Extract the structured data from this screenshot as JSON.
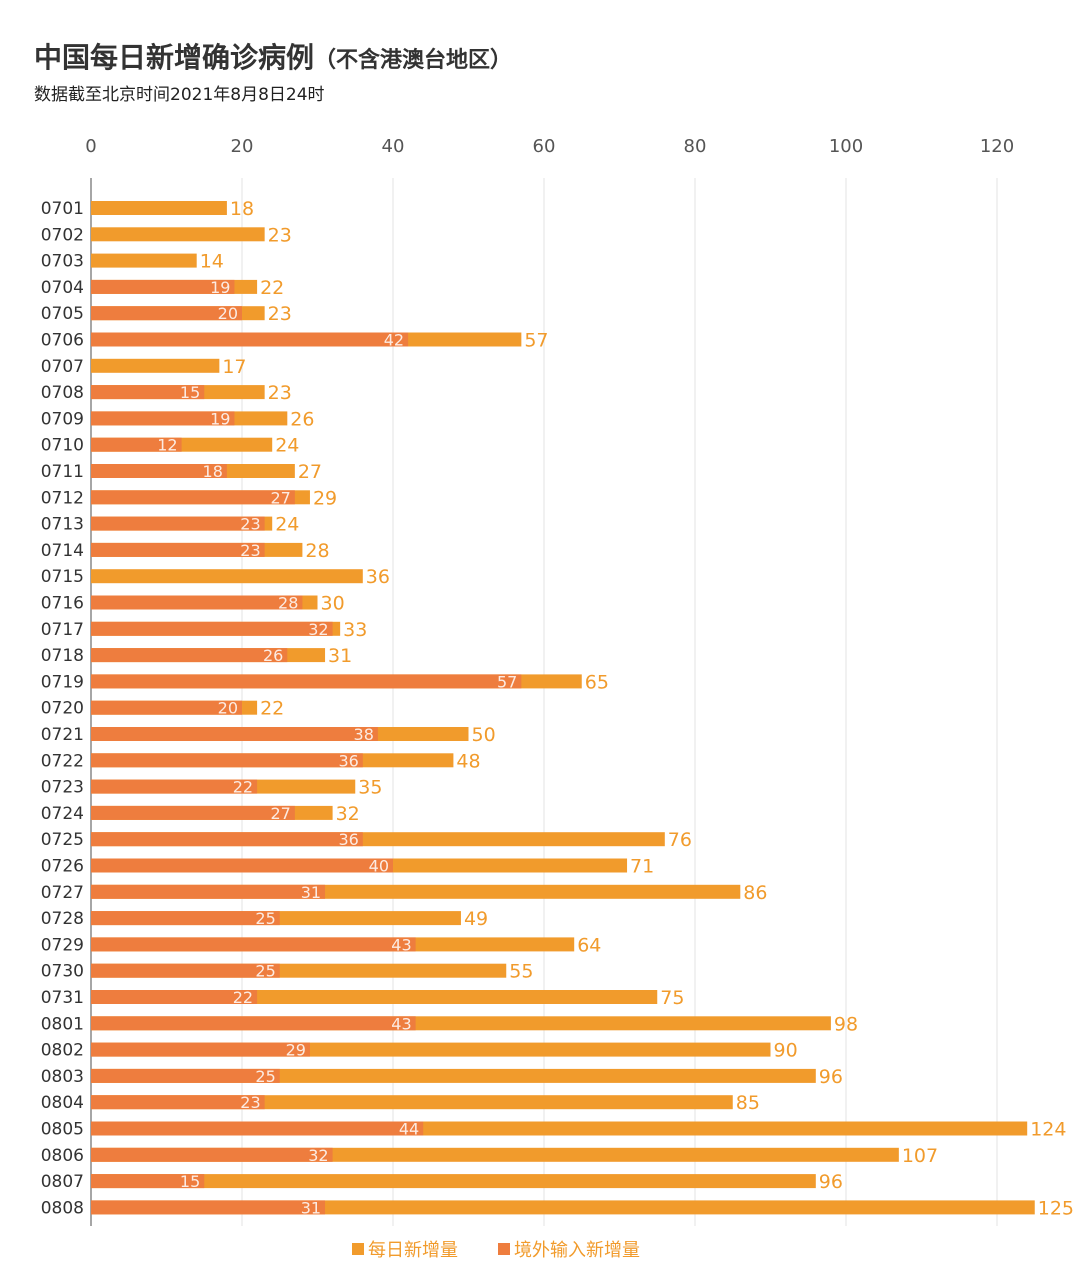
{
  "title": "中国每日新增确诊病例",
  "title_note": "（不含港澳台地区）",
  "subtitle": "数据截至北京时间2021年8月8日24时",
  "colors": {
    "total": "#f19b2c",
    "imported": "#ee7d3e",
    "grid": "#e3e3e3",
    "axis": "#888888"
  },
  "chart_data": {
    "type": "bar",
    "orientation": "horizontal",
    "stacking": "overlay",
    "xlim": [
      0,
      125
    ],
    "xticks": [
      0,
      20,
      40,
      60,
      80,
      100,
      120
    ],
    "grid": true,
    "legend_position": "bottom",
    "categories": [
      "0701",
      "0702",
      "0703",
      "0704",
      "0705",
      "0706",
      "0707",
      "0708",
      "0709",
      "0710",
      "0711",
      "0712",
      "0713",
      "0714",
      "0715",
      "0716",
      "0717",
      "0718",
      "0719",
      "0720",
      "0721",
      "0722",
      "0723",
      "0724",
      "0725",
      "0726",
      "0727",
      "0728",
      "0729",
      "0730",
      "0731",
      "0801",
      "0802",
      "0803",
      "0804",
      "0805",
      "0806",
      "0807",
      "0808"
    ],
    "series": [
      {
        "name": "每日新增量",
        "values": [
          18,
          23,
          14,
          22,
          23,
          57,
          17,
          23,
          26,
          24,
          27,
          29,
          24,
          28,
          36,
          30,
          33,
          31,
          65,
          22,
          50,
          48,
          35,
          32,
          76,
          71,
          86,
          49,
          64,
          55,
          75,
          98,
          90,
          96,
          85,
          124,
          107,
          96,
          125
        ]
      },
      {
        "name": "境外输入新增量",
        "values": [
          null,
          null,
          null,
          19,
          20,
          42,
          null,
          15,
          19,
          12,
          18,
          27,
          23,
          23,
          null,
          28,
          32,
          26,
          57,
          20,
          38,
          36,
          22,
          27,
          36,
          40,
          31,
          25,
          43,
          25,
          22,
          43,
          29,
          25,
          23,
          44,
          32,
          15,
          31
        ]
      }
    ]
  }
}
